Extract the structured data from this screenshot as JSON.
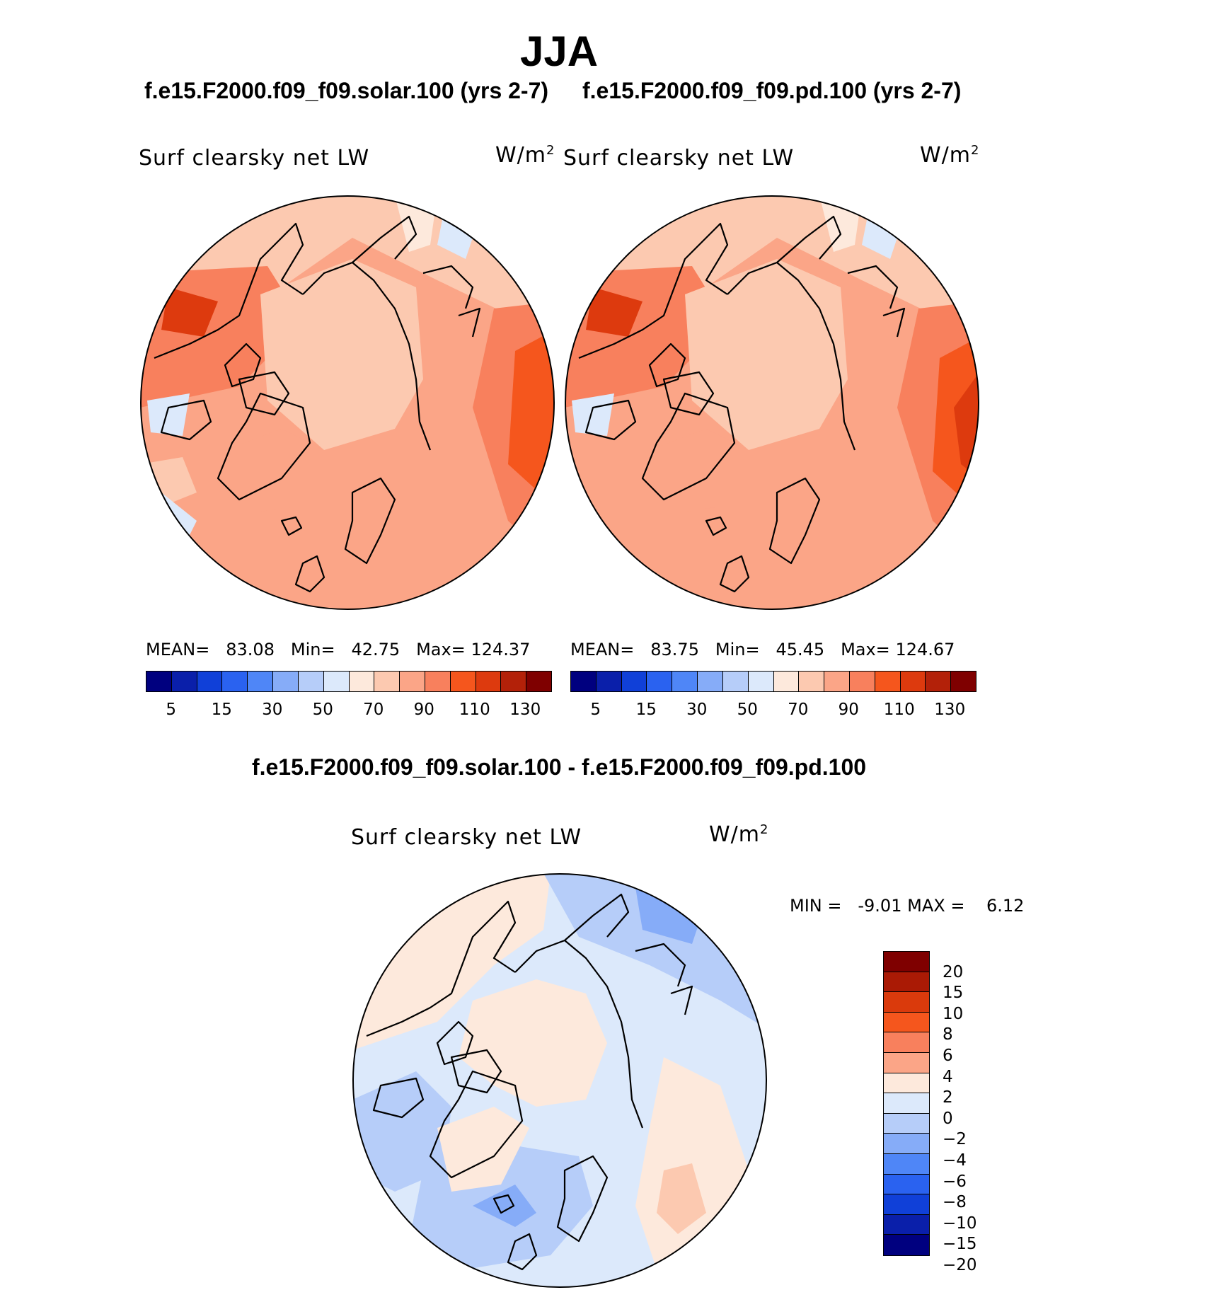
{
  "season": "JJA",
  "case_left": "f.e15.F2000.f09_f09.solar.100 (yrs 2-7)",
  "case_right": "f.e15.F2000.f09_f09.pd.100 (yrs 2-7)",
  "diff_title": "f.e15.F2000.f09_f09.solar.100 - f.e15.F2000.f09_f09.pd.100",
  "variable": "Surf clearsky net LW",
  "units": "W/m",
  "units_exp": "2",
  "panel_left": {
    "mean_label": "MEAN=",
    "mean": "83.08",
    "min_label": "Min=",
    "min": "42.75",
    "max_label": "Max=",
    "max": "124.37"
  },
  "panel_right": {
    "mean_label": "MEAN=",
    "mean": "83.75",
    "min_label": "Min=",
    "min": "45.45",
    "max_label": "Max=",
    "max": "124.67"
  },
  "diff_stats": {
    "min_label": "MIN =",
    "min": "-9.01",
    "max_label": "MAX =",
    "max": "6.12"
  },
  "abs_colors": [
    "#00007f",
    "#0a1faa",
    "#1040d8",
    "#2a62f0",
    "#4f86f7",
    "#86acf8",
    "#b6cdf9",
    "#dce9fb",
    "#fde9dc",
    "#fcc9b0",
    "#fba587",
    "#f8805d",
    "#f5561d",
    "#dd3a0e",
    "#b32109",
    "#7f0000"
  ],
  "abs_ticks": [
    "5",
    "15",
    "30",
    "50",
    "70",
    "90",
    "110",
    "130"
  ],
  "diff_colors": [
    "#7f0000",
    "#aa1a05",
    "#da3a0c",
    "#f5561d",
    "#f8805d",
    "#fba587",
    "#fde9dc",
    "#dce9fb",
    "#b6cdf9",
    "#86acf8",
    "#4f86f7",
    "#2a62f0",
    "#1040d8",
    "#0a1faa",
    "#00007f"
  ],
  "diff_ticks": [
    "20",
    "15",
    "10",
    "8",
    "6",
    "4",
    "2",
    "0",
    "−2",
    "−4",
    "−6",
    "−8",
    "−10",
    "−15",
    "−20"
  ]
}
